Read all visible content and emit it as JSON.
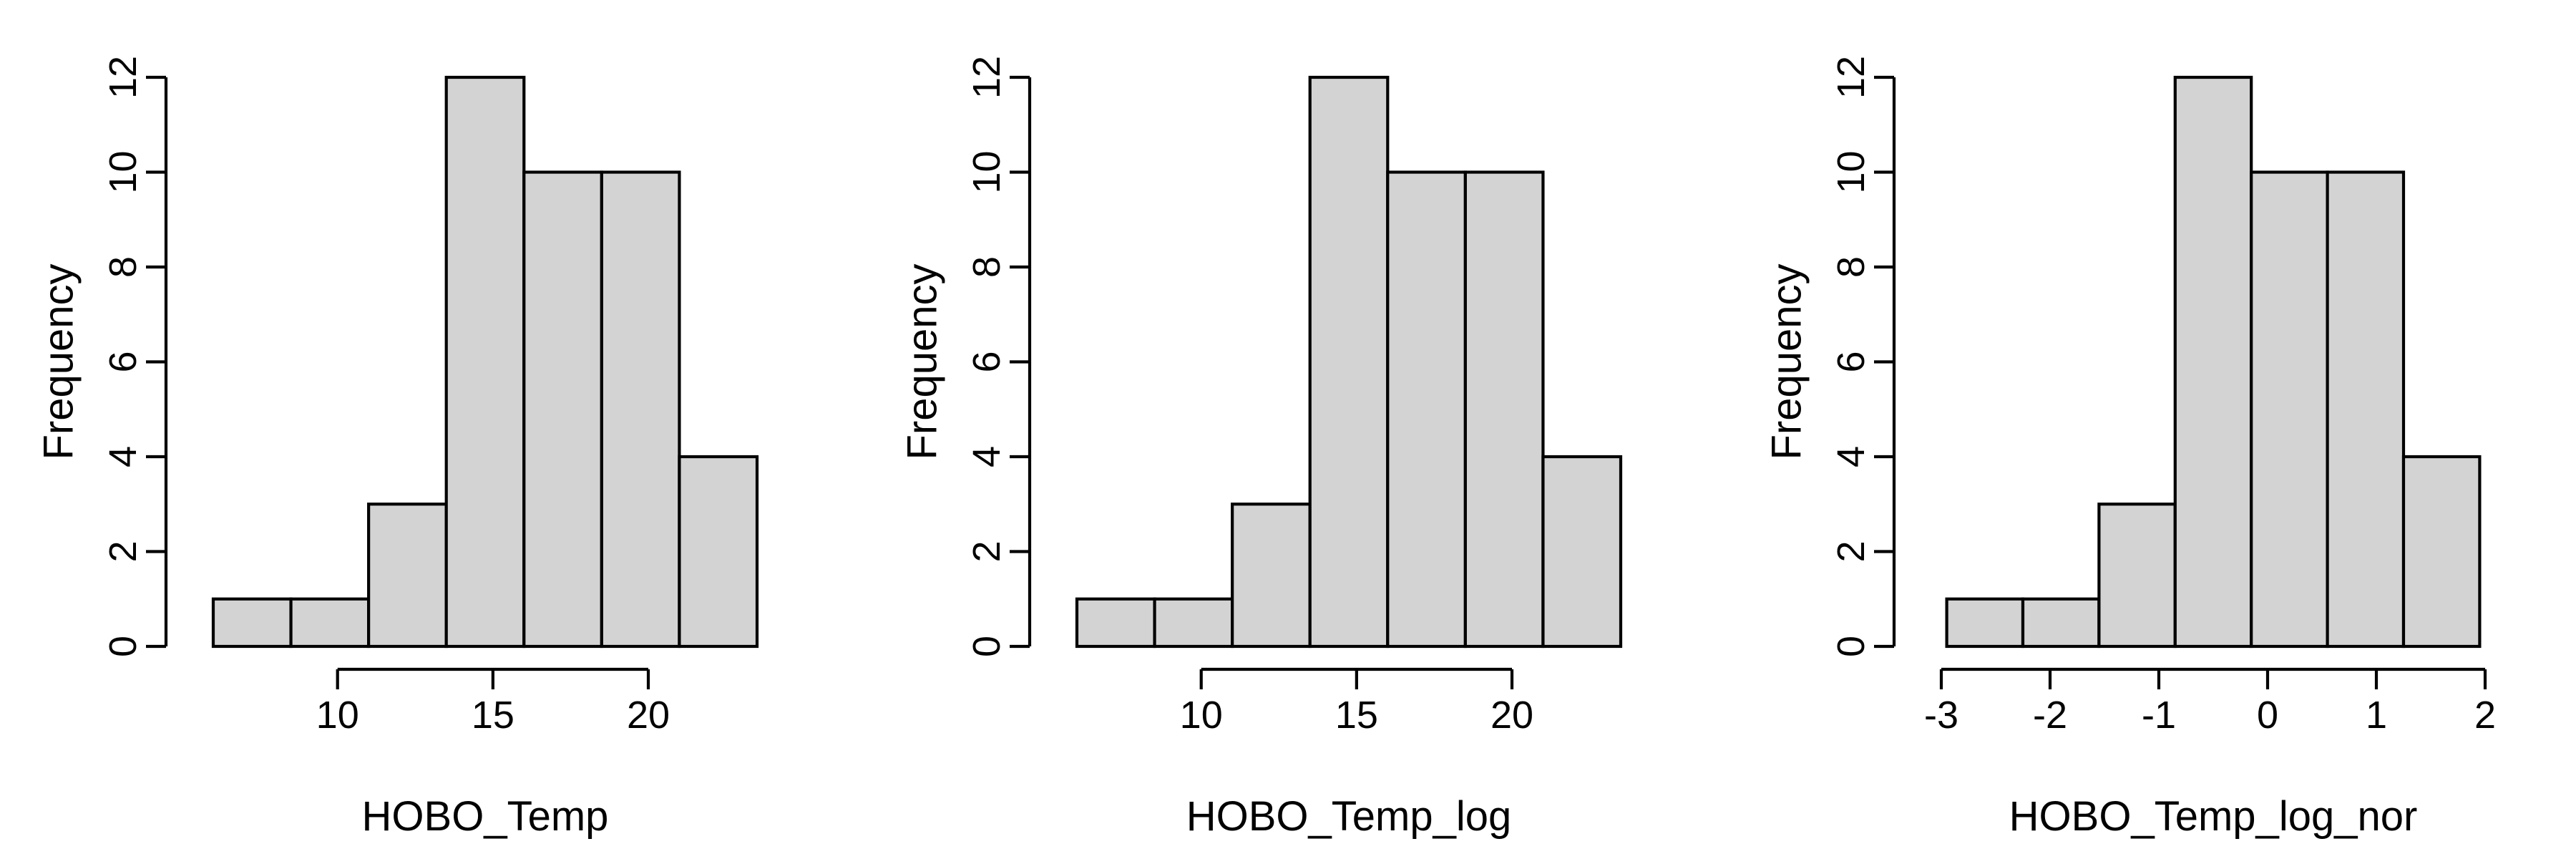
{
  "chart_data": [
    {
      "type": "bar",
      "title": "",
      "xlabel": "HOBO_Temp",
      "ylabel": "Frequency",
      "bins": [
        [
          6.0,
          8.5
        ],
        [
          8.5,
          11.0
        ],
        [
          11.0,
          13.5
        ],
        [
          13.5,
          16.0
        ],
        [
          16.0,
          18.5
        ],
        [
          18.5,
          21.0
        ],
        [
          21.0,
          23.5
        ]
      ],
      "values": [
        1,
        1,
        3,
        12,
        10,
        10,
        4
      ],
      "xlim": [
        6.0,
        23.5
      ],
      "ylim": [
        0,
        12
      ],
      "x_ticks": [
        10,
        15,
        20
      ],
      "x_tick_labels": [
        "10",
        "15",
        "20"
      ],
      "y_ticks": [
        0,
        2,
        4,
        6,
        8,
        10,
        12
      ],
      "y_tick_labels": [
        "0",
        "2",
        "4",
        "6",
        "8",
        "10",
        "12"
      ],
      "grid": false
    },
    {
      "type": "bar",
      "title": "",
      "xlabel": "HOBO_Temp_log",
      "ylabel": "Frequency",
      "bins": [
        [
          6.0,
          8.5
        ],
        [
          8.5,
          11.0
        ],
        [
          11.0,
          13.5
        ],
        [
          13.5,
          16.0
        ],
        [
          16.0,
          18.5
        ],
        [
          18.5,
          21.0
        ],
        [
          21.0,
          23.5
        ]
      ],
      "values": [
        1,
        1,
        3,
        12,
        10,
        10,
        4
      ],
      "xlim": [
        6.0,
        23.5
      ],
      "ylim": [
        0,
        12
      ],
      "x_ticks": [
        10,
        15,
        20
      ],
      "x_tick_labels": [
        "10",
        "15",
        "20"
      ],
      "y_ticks": [
        0,
        2,
        4,
        6,
        8,
        10,
        12
      ],
      "y_tick_labels": [
        "0",
        "2",
        "4",
        "6",
        "8",
        "10",
        "12"
      ],
      "grid": false
    },
    {
      "type": "bar",
      "title": "",
      "xlabel": "HOBO_Temp_log_nor",
      "ylabel": "Frequency",
      "bins": [
        [
          -2.95,
          -2.25
        ],
        [
          -2.25,
          -1.55
        ],
        [
          -1.55,
          -0.85
        ],
        [
          -0.85,
          -0.15
        ],
        [
          -0.15,
          0.55
        ],
        [
          0.55,
          1.25
        ],
        [
          1.25,
          1.95
        ]
      ],
      "values": [
        1,
        1,
        3,
        12,
        10,
        10,
        4
      ],
      "xlim": [
        -3,
        2
      ],
      "ylim": [
        0,
        12
      ],
      "x_ticks": [
        -3,
        -2,
        -1,
        0,
        1,
        2
      ],
      "x_tick_labels": [
        "-3",
        "-2",
        "-1",
        "0",
        "1",
        "2"
      ],
      "y_ticks": [
        0,
        2,
        4,
        6,
        8,
        10,
        12
      ],
      "y_tick_labels": [
        "0",
        "2",
        "4",
        "6",
        "8",
        "10",
        "12"
      ],
      "grid": false
    }
  ]
}
